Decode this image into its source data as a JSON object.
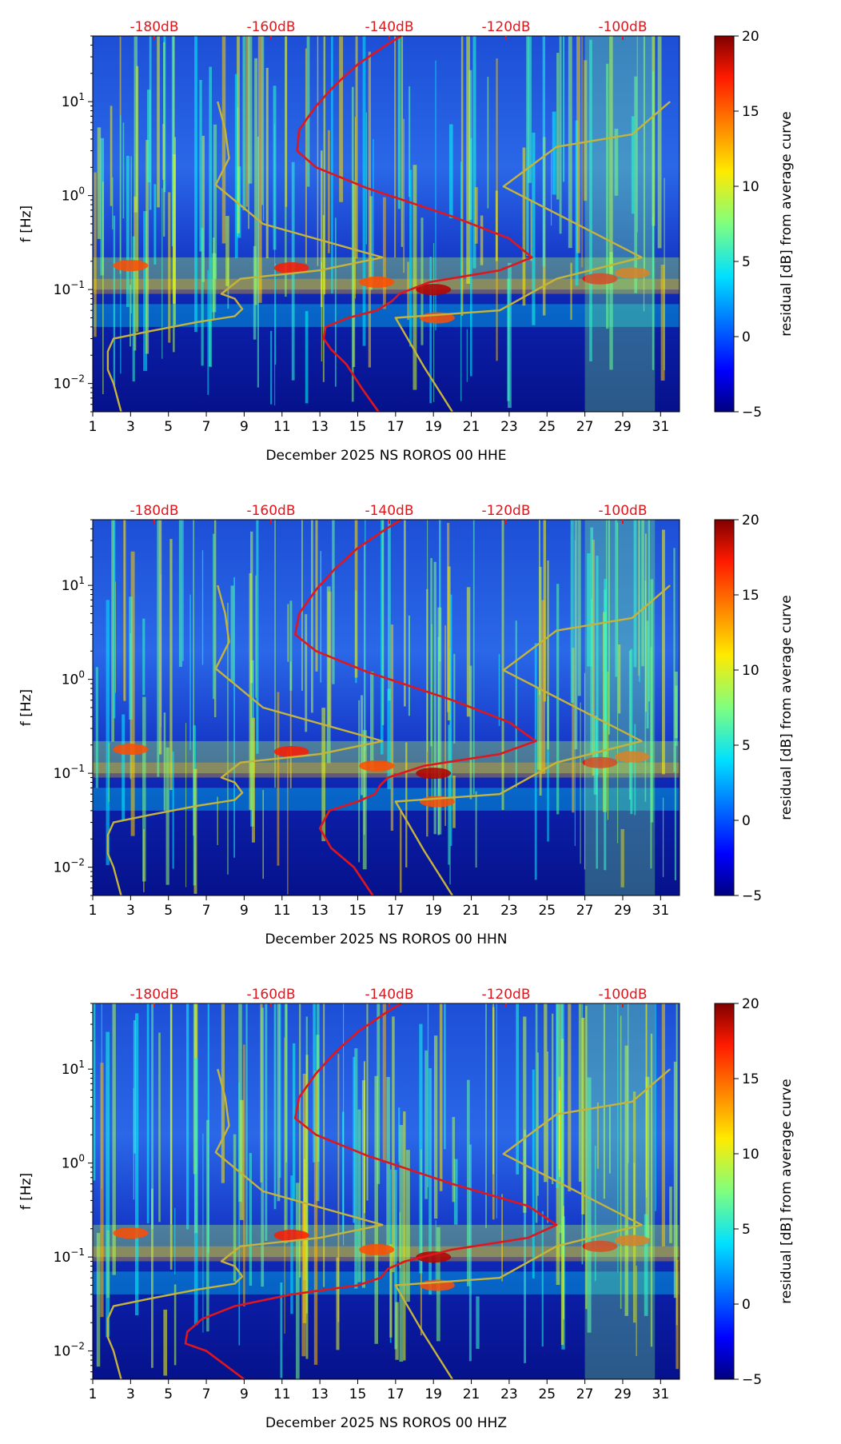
{
  "chart_data": [
    {
      "type": "heatmap",
      "title": "",
      "xlabel": "December 2025 NS ROROS 00 HHE",
      "ylabel": "f [Hz]",
      "x_ticks": [
        "1",
        "3",
        "5",
        "7",
        "9",
        "11",
        "13",
        "15",
        "17",
        "19",
        "21",
        "23",
        "25",
        "27",
        "29",
        "31"
      ],
      "xlim": [
        1,
        32
      ],
      "ylim": [
        0.005,
        50
      ],
      "y_scale": "log",
      "y_ticks": [
        {
          "value": 0.01,
          "base": "10",
          "exp": "−2"
        },
        {
          "value": 0.1,
          "base": "10",
          "exp": "−1"
        },
        {
          "value": 1,
          "base": "10",
          "exp": "0"
        },
        {
          "value": 10,
          "base": "10",
          "exp": "1"
        }
      ],
      "top_axis_labels": [
        "-180dB",
        "-160dB",
        "-140dB",
        "-120dB",
        "-100dB"
      ],
      "colorbar": {
        "label": "residual [dB] from average curve",
        "ticks": [
          "20",
          "15",
          "10",
          "5",
          "0",
          "−5"
        ],
        "range": [
          -5,
          20
        ]
      },
      "series": [
        {
          "name": "average PSD (red)",
          "color": "#e0161d",
          "points": [
            [
              16.1,
              0.005
            ],
            [
              15.2,
              0.009
            ],
            [
              14.4,
              0.016
            ],
            [
              13.6,
              0.023
            ],
            [
              13.2,
              0.03
            ],
            [
              13.3,
              0.04
            ],
            [
              14.5,
              0.05
            ],
            [
              16.0,
              0.06
            ],
            [
              16.8,
              0.075
            ],
            [
              17.2,
              0.09
            ],
            [
              18.8,
              0.12
            ],
            [
              22.5,
              0.16
            ],
            [
              24.2,
              0.22
            ],
            [
              23.0,
              0.35
            ],
            [
              20.0,
              0.6
            ],
            [
              15.5,
              1.2
            ],
            [
              12.8,
              2.0
            ],
            [
              11.8,
              3.0
            ],
            [
              11.9,
              5.0
            ],
            [
              12.8,
              9.0
            ],
            [
              13.8,
              15.0
            ],
            [
              15.0,
              25.0
            ],
            [
              16.5,
              40.0
            ],
            [
              17.3,
              50.0
            ]
          ]
        },
        {
          "name": "NLNM (olive)",
          "color": "#c6b43a",
          "points": [
            [
              2.5,
              0.005
            ],
            [
              2.1,
              0.01
            ],
            [
              1.8,
              0.014
            ],
            [
              1.8,
              0.022
            ],
            [
              2.1,
              0.03
            ],
            [
              4.0,
              0.036
            ],
            [
              6.5,
              0.045
            ],
            [
              8.5,
              0.052
            ],
            [
              8.9,
              0.062
            ],
            [
              8.5,
              0.08
            ],
            [
              7.8,
              0.09
            ],
            [
              8.8,
              0.13
            ],
            [
              13.0,
              0.16
            ],
            [
              16.3,
              0.22
            ],
            [
              10.0,
              0.5
            ],
            [
              7.5,
              1.3
            ],
            [
              8.2,
              2.5
            ],
            [
              8.0,
              5.0
            ],
            [
              7.6,
              10.0
            ]
          ]
        },
        {
          "name": "NHNM (olive)",
          "color": "#c6b43a",
          "points": [
            [
              20.0,
              0.005
            ],
            [
              18.5,
              0.015
            ],
            [
              17.0,
              0.05
            ],
            [
              22.5,
              0.06
            ],
            [
              25.5,
              0.13
            ],
            [
              30.0,
              0.22
            ],
            [
              22.7,
              1.25
            ],
            [
              25.5,
              3.3
            ],
            [
              29.5,
              4.5
            ],
            [
              31.5,
              10.0
            ]
          ]
        }
      ]
    },
    {
      "type": "heatmap",
      "title": "",
      "xlabel": "December 2025 NS ROROS 00 HHN",
      "ylabel": "f [Hz]",
      "x_ticks": [
        "1",
        "3",
        "5",
        "7",
        "9",
        "11",
        "13",
        "15",
        "17",
        "19",
        "21",
        "23",
        "25",
        "27",
        "29",
        "31"
      ],
      "xlim": [
        1,
        32
      ],
      "ylim": [
        0.005,
        50
      ],
      "y_scale": "log",
      "y_ticks": [
        {
          "value": 0.01,
          "base": "10",
          "exp": "−2"
        },
        {
          "value": 0.1,
          "base": "10",
          "exp": "−1"
        },
        {
          "value": 1,
          "base": "10",
          "exp": "0"
        },
        {
          "value": 10,
          "base": "10",
          "exp": "1"
        }
      ],
      "top_axis_labels": [
        "-180dB",
        "-160dB",
        "-140dB",
        "-120dB",
        "-100dB"
      ],
      "colorbar": {
        "label": "residual [dB] from average curve",
        "ticks": [
          "20",
          "15",
          "10",
          "5",
          "0",
          "−5"
        ],
        "range": [
          -5,
          20
        ]
      },
      "series": [
        {
          "name": "average PSD (red)",
          "color": "#e0161d",
          "points": [
            [
              15.8,
              0.005
            ],
            [
              14.8,
              0.01
            ],
            [
              13.6,
              0.016
            ],
            [
              13.0,
              0.026
            ],
            [
              13.5,
              0.04
            ],
            [
              15.0,
              0.05
            ],
            [
              15.9,
              0.06
            ],
            [
              16.2,
              0.075
            ],
            [
              16.6,
              0.09
            ],
            [
              18.5,
              0.12
            ],
            [
              22.5,
              0.16
            ],
            [
              24.4,
              0.22
            ],
            [
              23.0,
              0.35
            ],
            [
              20.0,
              0.6
            ],
            [
              15.5,
              1.2
            ],
            [
              12.8,
              2.0
            ],
            [
              11.7,
              3.0
            ],
            [
              11.9,
              5.0
            ],
            [
              12.8,
              9.0
            ],
            [
              13.8,
              15.0
            ],
            [
              15.0,
              25.0
            ],
            [
              16.5,
              40.0
            ],
            [
              17.3,
              50.0
            ]
          ]
        },
        {
          "name": "NLNM (olive)",
          "color": "#c6b43a",
          "points": [
            [
              2.5,
              0.005
            ],
            [
              2.1,
              0.01
            ],
            [
              1.8,
              0.014
            ],
            [
              1.8,
              0.022
            ],
            [
              2.1,
              0.03
            ],
            [
              4.0,
              0.036
            ],
            [
              6.5,
              0.045
            ],
            [
              8.5,
              0.052
            ],
            [
              8.9,
              0.062
            ],
            [
              8.5,
              0.08
            ],
            [
              7.8,
              0.09
            ],
            [
              8.8,
              0.13
            ],
            [
              13.0,
              0.16
            ],
            [
              16.3,
              0.22
            ],
            [
              10.0,
              0.5
            ],
            [
              7.5,
              1.3
            ],
            [
              8.2,
              2.5
            ],
            [
              8.0,
              5.0
            ],
            [
              7.6,
              10.0
            ]
          ]
        },
        {
          "name": "NHNM (olive)",
          "color": "#c6b43a",
          "points": [
            [
              20.0,
              0.005
            ],
            [
              18.5,
              0.015
            ],
            [
              17.0,
              0.05
            ],
            [
              22.5,
              0.06
            ],
            [
              25.5,
              0.13
            ],
            [
              30.0,
              0.22
            ],
            [
              22.7,
              1.25
            ],
            [
              25.5,
              3.3
            ],
            [
              29.5,
              4.5
            ],
            [
              31.5,
              10.0
            ]
          ]
        }
      ]
    },
    {
      "type": "heatmap",
      "title": "",
      "xlabel": "December 2025 NS ROROS 00 HHZ",
      "ylabel": "f [Hz]",
      "x_ticks": [
        "1",
        "3",
        "5",
        "7",
        "9",
        "11",
        "13",
        "15",
        "17",
        "19",
        "21",
        "23",
        "25",
        "27",
        "29",
        "31"
      ],
      "xlim": [
        1,
        32
      ],
      "ylim": [
        0.005,
        50
      ],
      "y_scale": "log",
      "y_ticks": [
        {
          "value": 0.01,
          "base": "10",
          "exp": "−2"
        },
        {
          "value": 0.1,
          "base": "10",
          "exp": "−1"
        },
        {
          "value": 1,
          "base": "10",
          "exp": "0"
        },
        {
          "value": 10,
          "base": "10",
          "exp": "1"
        }
      ],
      "top_axis_labels": [
        "-180dB",
        "-160dB",
        "-140dB",
        "-120dB",
        "-100dB"
      ],
      "colorbar": {
        "label": "residual [dB] from average curve",
        "ticks": [
          "20",
          "15",
          "10",
          "5",
          "0",
          "−5"
        ],
        "range": [
          -5,
          20
        ]
      },
      "series": [
        {
          "name": "average PSD (red)",
          "color": "#e0161d",
          "points": [
            [
              9.0,
              0.005
            ],
            [
              7.0,
              0.01
            ],
            [
              5.9,
              0.012
            ],
            [
              6.0,
              0.016
            ],
            [
              6.8,
              0.022
            ],
            [
              8.5,
              0.03
            ],
            [
              11.5,
              0.04
            ],
            [
              15.0,
              0.05
            ],
            [
              16.2,
              0.06
            ],
            [
              16.6,
              0.075
            ],
            [
              17.5,
              0.09
            ],
            [
              20.0,
              0.12
            ],
            [
              24.0,
              0.16
            ],
            [
              25.5,
              0.22
            ],
            [
              24.0,
              0.35
            ],
            [
              20.0,
              0.6
            ],
            [
              15.5,
              1.2
            ],
            [
              12.8,
              2.0
            ],
            [
              11.7,
              3.0
            ],
            [
              11.9,
              5.0
            ],
            [
              12.8,
              9.0
            ],
            [
              13.8,
              15.0
            ],
            [
              15.0,
              25.0
            ],
            [
              16.5,
              40.0
            ],
            [
              17.3,
              50.0
            ]
          ]
        },
        {
          "name": "NLNM (olive)",
          "color": "#c6b43a",
          "points": [
            [
              2.5,
              0.005
            ],
            [
              2.1,
              0.01
            ],
            [
              1.8,
              0.014
            ],
            [
              1.8,
              0.022
            ],
            [
              2.1,
              0.03
            ],
            [
              4.0,
              0.036
            ],
            [
              6.5,
              0.045
            ],
            [
              8.5,
              0.052
            ],
            [
              8.9,
              0.062
            ],
            [
              8.5,
              0.08
            ],
            [
              7.8,
              0.09
            ],
            [
              8.8,
              0.13
            ],
            [
              13.0,
              0.16
            ],
            [
              16.3,
              0.22
            ],
            [
              10.0,
              0.5
            ],
            [
              7.5,
              1.3
            ],
            [
              8.2,
              2.5
            ],
            [
              8.0,
              5.0
            ],
            [
              7.6,
              10.0
            ]
          ]
        },
        {
          "name": "NHNM (olive)",
          "color": "#c6b43a",
          "points": [
            [
              20.0,
              0.005
            ],
            [
              18.5,
              0.015
            ],
            [
              17.0,
              0.05
            ],
            [
              22.5,
              0.06
            ],
            [
              25.5,
              0.13
            ],
            [
              30.0,
              0.22
            ],
            [
              22.7,
              1.25
            ],
            [
              25.5,
              3.3
            ],
            [
              29.5,
              4.5
            ],
            [
              31.5,
              10.0
            ]
          ]
        }
      ]
    }
  ]
}
